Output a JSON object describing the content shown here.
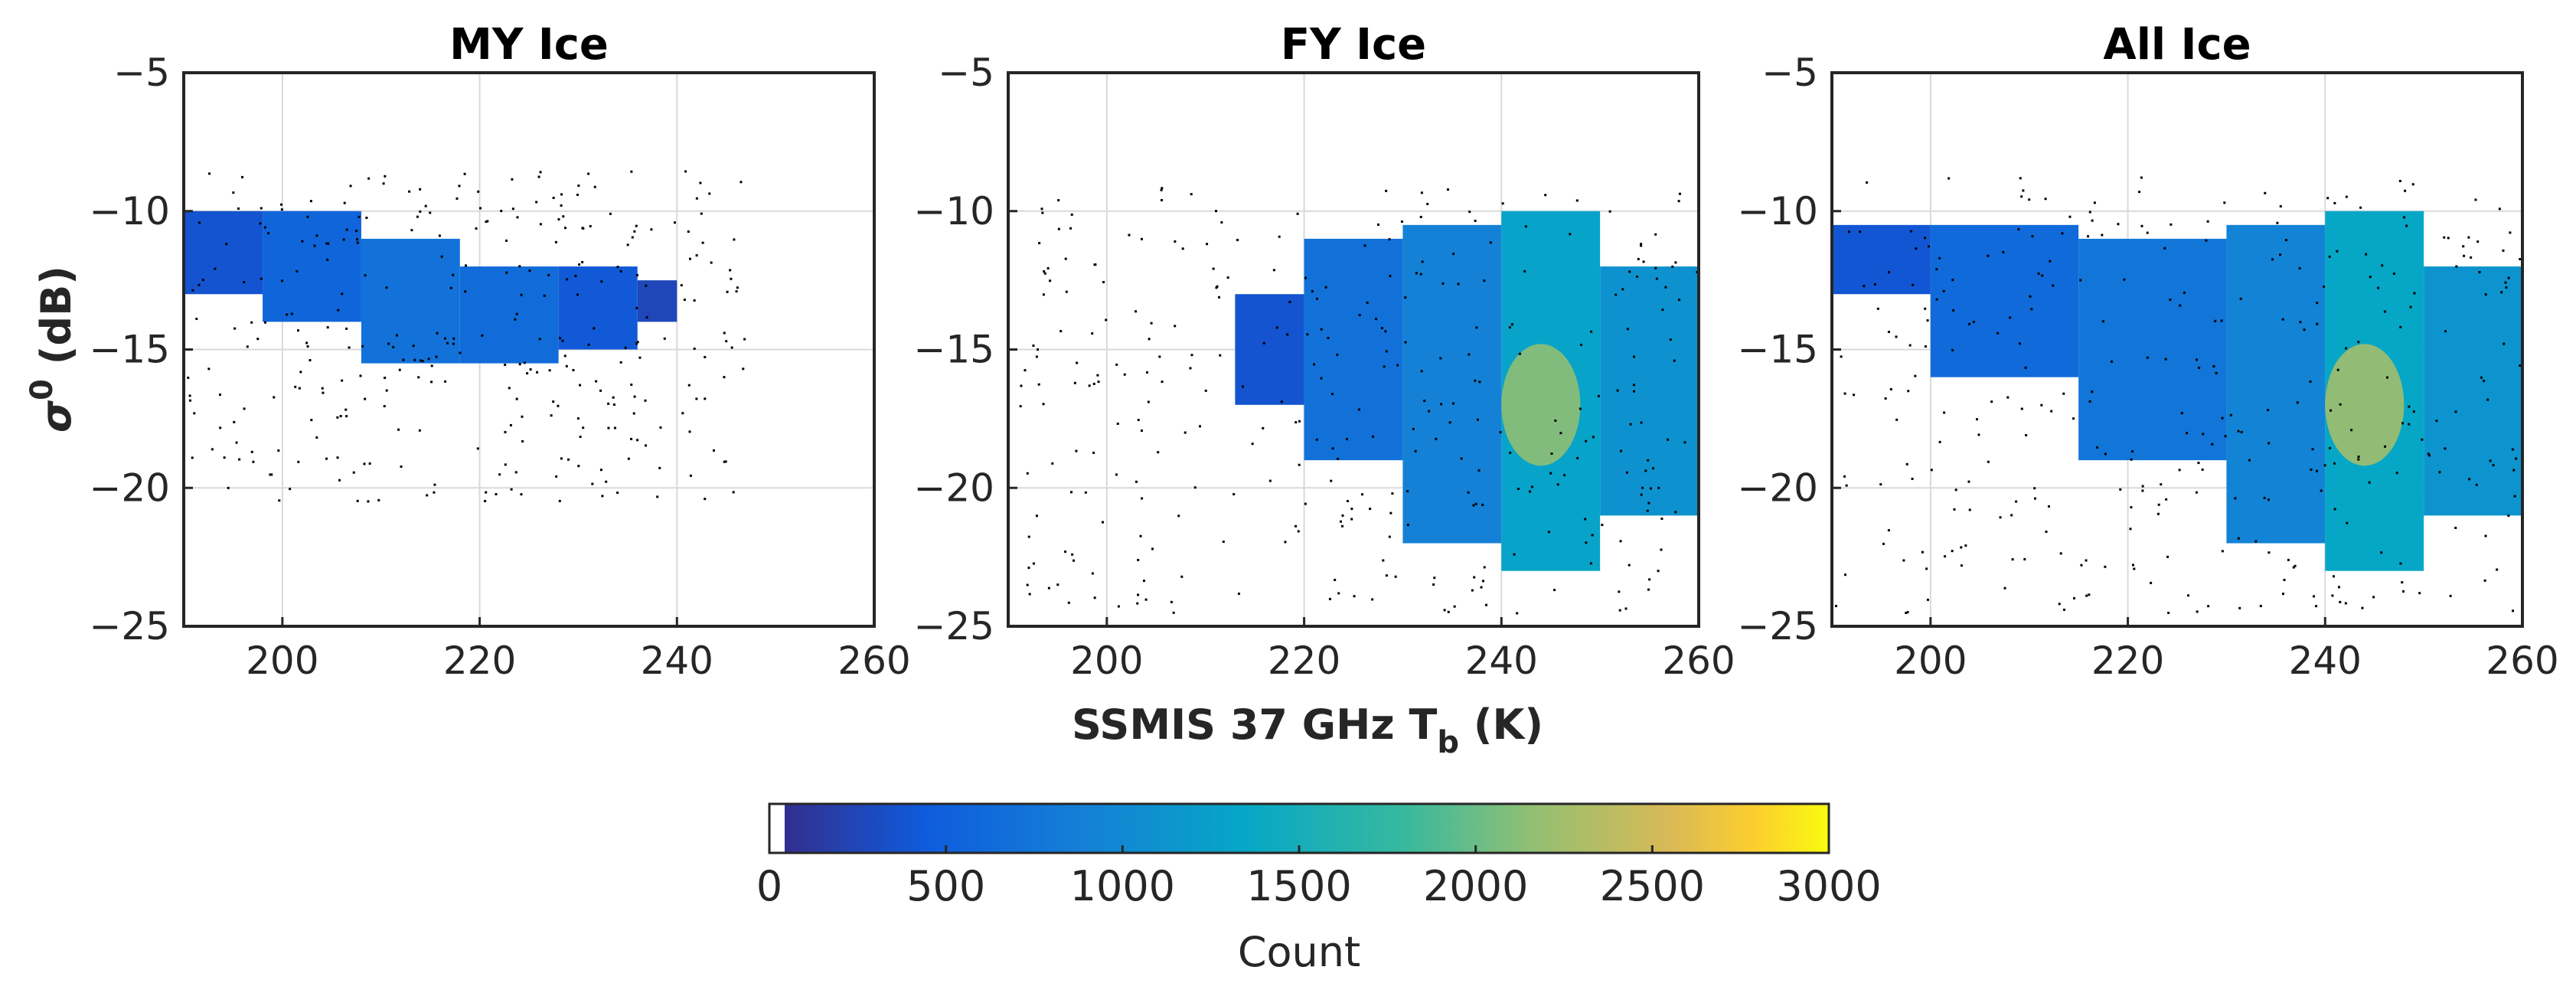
{
  "chart_data": {
    "type": "heatmap",
    "shared": {
      "xlabel": "SSMIS 37 GHz T",
      "xlabel_subscript": "b",
      "xlabel_suffix": " (K)",
      "ylabel_symbol": "σ",
      "ylabel_superscript": "0",
      "ylabel_suffix": " (dB)",
      "xlim": [
        190,
        260
      ],
      "ylim": [
        -25,
        -5
      ],
      "x_ticks": [
        200,
        220,
        240,
        260
      ],
      "y_ticks": [
        -5,
        -10,
        -15,
        -20,
        -25
      ],
      "grid": true
    },
    "panels": [
      {
        "title": "MY Ice",
        "cells": [
          {
            "x": [
              190,
              198
            ],
            "y": [
              -13,
              -10
            ],
            "count": 380
          },
          {
            "x": [
              198,
              208
            ],
            "y": [
              -14,
              -10
            ],
            "count": 560
          },
          {
            "x": [
              208,
              218
            ],
            "y": [
              -15.5,
              -11
            ],
            "count": 720
          },
          {
            "x": [
              218,
              228
            ],
            "y": [
              -15.5,
              -12
            ],
            "count": 640
          },
          {
            "x": [
              228,
              236
            ],
            "y": [
              -15,
              -12
            ],
            "count": 420
          },
          {
            "x": [
              236,
              240
            ],
            "y": [
              -14,
              -12.5
            ],
            "count": 260
          }
        ],
        "hotspot": null,
        "scatter_extent": {
          "x": [
            190,
            247
          ],
          "y": [
            -20.5,
            -8.5
          ]
        }
      },
      {
        "title": "FY Ice",
        "cells": [
          {
            "x": [
              213,
              220
            ],
            "y": [
              -17,
              -13
            ],
            "count": 380
          },
          {
            "x": [
              220,
              230
            ],
            "y": [
              -19,
              -11
            ],
            "count": 700
          },
          {
            "x": [
              230,
              240
            ],
            "y": [
              -22,
              -10.5
            ],
            "count": 900
          },
          {
            "x": [
              240,
              250
            ],
            "y": [
              -23,
              -10
            ],
            "count": 1300
          },
          {
            "x": [
              250,
              260
            ],
            "y": [
              -21,
              -12
            ],
            "count": 1100
          }
        ],
        "hotspot": {
          "x": 244,
          "y": -17,
          "count": 2150
        },
        "scatter_extent": {
          "x": [
            191,
            260
          ],
          "y": [
            -24.5,
            -8.7
          ]
        }
      },
      {
        "title": "All Ice",
        "cells": [
          {
            "x": [
              190,
              200
            ],
            "y": [
              -13,
              -10.5
            ],
            "count": 400
          },
          {
            "x": [
              200,
              215
            ],
            "y": [
              -16,
              -10.5
            ],
            "count": 620
          },
          {
            "x": [
              215,
              230
            ],
            "y": [
              -19,
              -11
            ],
            "count": 760
          },
          {
            "x": [
              230,
              240
            ],
            "y": [
              -22,
              -10.5
            ],
            "count": 920
          },
          {
            "x": [
              240,
              250
            ],
            "y": [
              -23,
              -10
            ],
            "count": 1350
          },
          {
            "x": [
              250,
              260
            ],
            "y": [
              -21,
              -12
            ],
            "count": 1120
          }
        ],
        "hotspot": {
          "x": 244,
          "y": -17,
          "count": 2250
        },
        "scatter_extent": {
          "x": [
            190,
            260
          ],
          "y": [
            -24.5,
            -8.7
          ]
        }
      }
    ],
    "colorbar": {
      "label": "Count",
      "range": [
        0,
        3000
      ],
      "ticks": [
        "0",
        "500",
        "1000",
        "1500",
        "2000",
        "2500",
        "3000"
      ],
      "colormap": "parula"
    }
  }
}
